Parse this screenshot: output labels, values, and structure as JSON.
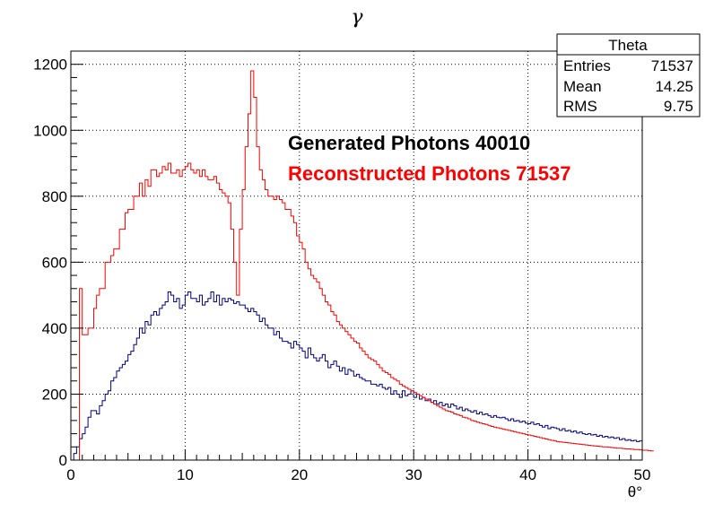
{
  "chart_data": {
    "type": "line",
    "title": "γ",
    "xlabel": "θ°",
    "ylabel": "",
    "xlim": [
      0,
      50
    ],
    "ylim": [
      0,
      1240
    ],
    "x_ticks": [
      0,
      10,
      20,
      30,
      40,
      50
    ],
    "y_ticks": [
      0,
      200,
      400,
      600,
      800,
      1000,
      1200
    ],
    "grid": true,
    "bin_width": 0.25,
    "series": [
      {
        "name": "Generated Photons 40010",
        "color": "#000080",
        "values": [
          0,
          20,
          40,
          65,
          80,
          100,
          130,
          150,
          150,
          140,
          165,
          180,
          200,
          210,
          240,
          250,
          270,
          280,
          290,
          300,
          320,
          330,
          350,
          370,
          400,
          385,
          420,
          410,
          440,
          450,
          440,
          460,
          470,
          480,
          510,
          500,
          480,
          490,
          460,
          470,
          500,
          510,
          490,
          490,
          480,
          500,
          470,
          480,
          490,
          510,
          480,
          500,
          470,
          490,
          480,
          490,
          485,
          475,
          480,
          470,
          470,
          460,
          450,
          460,
          450,
          440,
          420,
          430,
          410,
          400,
          400,
          380,
          390,
          370,
          360,
          360,
          355,
          340,
          360,
          350,
          340,
          330,
          310,
          340,
          320,
          310,
          300,
          310,
          320,
          300,
          280,
          290,
          300,
          285,
          270,
          280,
          260,
          275,
          270,
          255,
          260,
          250,
          245,
          240,
          240,
          230,
          230,
          225,
          230,
          220,
          215,
          220,
          200,
          210,
          200,
          190,
          210,
          195,
          200,
          210,
          190,
          200,
          185,
          190,
          180,
          185,
          175,
          180,
          170,
          175,
          165,
          170,
          160,
          170,
          165,
          155,
          160,
          150,
          155,
          150,
          145,
          150,
          140,
          145,
          138,
          140,
          135,
          130,
          135,
          130,
          128,
          130,
          125,
          120,
          125,
          118,
          120,
          115,
          118,
          112,
          110,
          115,
          108,
          110,
          105,
          100,
          105,
          95,
          100,
          98,
          95,
          90,
          95,
          88,
          90,
          85,
          88,
          82,
          85,
          80,
          78,
          80,
          76,
          78,
          72,
          75,
          70,
          72,
          68,
          70,
          66,
          68,
          62,
          65,
          60,
          62,
          58,
          60,
          56,
          58
        ]
      },
      {
        "name": "Reconstructed Photons 71537",
        "color": "#ff0000",
        "values": [
          0,
          0,
          0,
          520,
          380,
          380,
          400,
          400,
          460,
          500,
          520,
          520,
          600,
          600,
          620,
          640,
          640,
          700,
          700,
          750,
          760,
          760,
          800,
          800,
          840,
          800,
          850,
          830,
          880,
          880,
          860,
          870,
          890,
          880,
          900,
          870,
          870,
          880,
          860,
          880,
          890,
          900,
          880,
          870,
          880,
          860,
          880,
          860,
          850,
          850,
          860,
          840,
          820,
          810,
          800,
          780,
          700,
          600,
          500,
          700,
          820,
          950,
          1050,
          1180,
          1100,
          950,
          880,
          850,
          820,
          800,
          800,
          790,
          800,
          790,
          780,
          760,
          760,
          740,
          720,
          680,
          660,
          640,
          600,
          580,
          560,
          550,
          540,
          520,
          500,
          480,
          470,
          450,
          440,
          420,
          410,
          400,
          390,
          380,
          370,
          360,
          355,
          340,
          330,
          320,
          310,
          305,
          300,
          290,
          280,
          270,
          265,
          260,
          250,
          245,
          240,
          230,
          225,
          220,
          215,
          210,
          205,
          200,
          195,
          190,
          185,
          180,
          175,
          170,
          165,
          160,
          155,
          150,
          148,
          145,
          140,
          138,
          135,
          130,
          128,
          125,
          120,
          118,
          115,
          112,
          110,
          108,
          105,
          102,
          100,
          98,
          96,
          94,
          92,
          90,
          88,
          86,
          84,
          82,
          80,
          78,
          76,
          74,
          72,
          70,
          68,
          66,
          64,
          62,
          60,
          58,
          56,
          55,
          54,
          53,
          52,
          51,
          50,
          49,
          48,
          47,
          46,
          45,
          44,
          43,
          42,
          41,
          40,
          40,
          39,
          38,
          37,
          36,
          36,
          35,
          34,
          34,
          33,
          32,
          32,
          31,
          30,
          30,
          29,
          28
        ]
      }
    ],
    "annotations": [
      {
        "text": "Generated Photons 40010",
        "color": "#000000"
      },
      {
        "text": "Reconstructed Photons 71537",
        "color": "#ff0000"
      }
    ],
    "legend": "top-right"
  },
  "stats_box": {
    "title": "Theta",
    "rows": [
      {
        "label": "Entries",
        "value": "71537"
      },
      {
        "label": "Mean",
        "value": "14.25"
      },
      {
        "label": "RMS",
        "value": "9.75"
      }
    ]
  }
}
